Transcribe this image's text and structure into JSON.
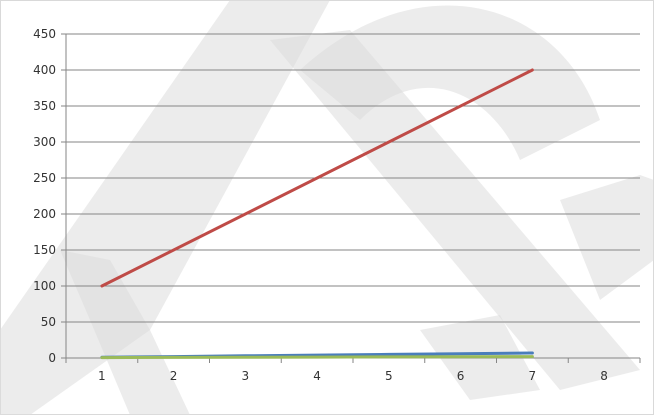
{
  "chart_data": {
    "type": "line",
    "title": "",
    "xlabel": "",
    "ylabel": "",
    "x_ticks": [
      "1",
      "2",
      "3",
      "4",
      "5",
      "6",
      "7",
      "8"
    ],
    "y_ticks": [
      "0",
      "50",
      "100",
      "150",
      "200",
      "250",
      "300",
      "350",
      "400",
      "450"
    ],
    "xlim": [
      0.5,
      8.5
    ],
    "ylim": [
      0,
      450
    ],
    "grid": "horizontal",
    "legend": "none",
    "series": [
      {
        "color": "#bf4b47",
        "x": [
          1,
          7
        ],
        "y": [
          100,
          400
        ]
      },
      {
        "color": "#4a7ebb",
        "x": [
          1,
          2,
          3,
          4,
          5,
          6,
          7
        ],
        "y": [
          1,
          2,
          3,
          4,
          5,
          6,
          7
        ]
      },
      {
        "color": "#9bbb59",
        "x": [
          1,
          2,
          3,
          4,
          5,
          6,
          7
        ],
        "y": [
          0.5,
          0.8,
          1,
          1.2,
          1.5,
          1.8,
          2
        ]
      }
    ],
    "watermark": {
      "color": "#dcdcdc"
    }
  }
}
